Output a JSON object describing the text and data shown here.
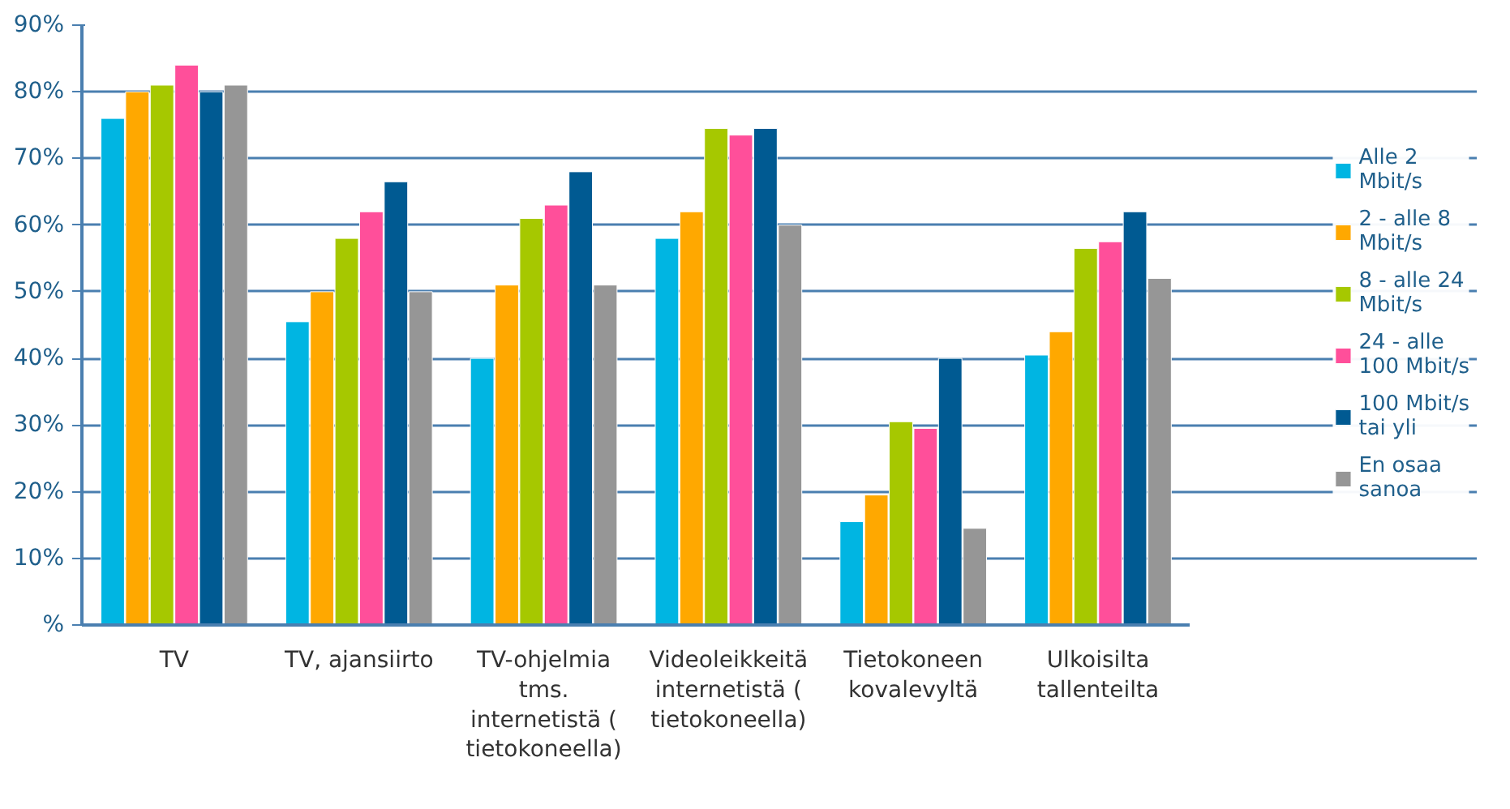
{
  "chart_data": {
    "type": "bar",
    "categories": [
      "TV",
      "TV, ajansiirto",
      "TV-ohjelmia tms. internetistä (tietokoneella)",
      "Videoleikkeitä internetistä (tietokoneella)",
      "Tietokoneen kovalevyltä",
      "Ulkoisilta tallenteilta"
    ],
    "series": [
      {
        "name": "Alle 2 Mbit/s",
        "color": "#00b5e2",
        "values": [
          76,
          45.5,
          40,
          58,
          15.5,
          40.5
        ]
      },
      {
        "name": "2 - alle 8 Mbit/s",
        "color": "#ffa800",
        "values": [
          80,
          50,
          51,
          62,
          19.5,
          44
        ]
      },
      {
        "name": "8 - alle 24 Mbit/s",
        "color": "#a6c800",
        "values": [
          81,
          58,
          61,
          74.5,
          30.5,
          56.5
        ]
      },
      {
        "name": "24 - alle 100 Mbit/s",
        "color": "#ff4f9a",
        "values": [
          84,
          62,
          63,
          73.5,
          29.5,
          57.5
        ]
      },
      {
        "name": "100 Mbit/s tai yli",
        "color": "#005a92",
        "values": [
          80,
          66.5,
          68,
          74.5,
          40,
          62
        ]
      },
      {
        "name": "En osaa sanoa",
        "color": "#969696",
        "values": [
          81,
          50,
          51,
          60,
          14.5,
          52
        ]
      }
    ],
    "ylim": [
      0,
      90
    ],
    "yticks": [
      {
        "value": 0,
        "label": "%"
      },
      {
        "value": 10,
        "label": "10%"
      },
      {
        "value": 20,
        "label": "20%"
      },
      {
        "value": 30,
        "label": "30%"
      },
      {
        "value": 40,
        "label": "40%"
      },
      {
        "value": 50,
        "label": "50%"
      },
      {
        "value": 60,
        "label": "60%"
      },
      {
        "value": 70,
        "label": "70%"
      },
      {
        "value": 80,
        "label": "80%"
      },
      {
        "value": 90,
        "label": "90%"
      }
    ],
    "grid": "y",
    "legend": "right"
  }
}
